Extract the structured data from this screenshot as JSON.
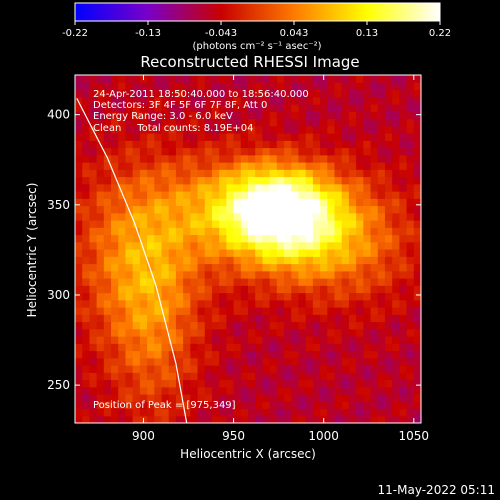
{
  "chart_data": {
    "type": "heatmap",
    "title": "Reconstructed RHESSI Image",
    "xlabel": "Heliocentric X (arcsec)",
    "ylabel": "Heliocentric Y (arcsec)",
    "xlim": [
      862,
      1054
    ],
    "ylim": [
      229,
      422
    ],
    "xticks": [
      900,
      950,
      1000,
      1050
    ],
    "yticks": [
      250,
      300,
      350,
      400
    ],
    "annotations": [
      "24-Apr-2011 18:50:40.000 to 18:56:40.000",
      "Detectors: 3F 4F 5F 6F 7F 8F, Att 0",
      "Energy Range: 3.0 - 6.0 keV",
      "Clean     Total counts: 8.19E+04"
    ],
    "peak_label": "Position of Peak = [975,349]",
    "peak": [
      975,
      349
    ],
    "colorbar": {
      "min": -0.22,
      "max": 0.22,
      "ticks": [
        "-0.22",
        "-0.13",
        "-0.043",
        "0.043",
        "0.13",
        "0.22"
      ],
      "unit_label": "(photons cm⁻² s⁻¹ asec⁻²)",
      "colors": [
        "#0000ff",
        "#7a00c8",
        "#c80000",
        "#ff7a00",
        "#ffff00",
        "#ffffff"
      ]
    },
    "limb_curve": [
      [
        863,
        409
      ],
      [
        880,
        376
      ],
      [
        895,
        340
      ],
      [
        907,
        305
      ],
      [
        918,
        262
      ],
      [
        924,
        229
      ]
    ],
    "sources": [
      {
        "x": 975,
        "y": 349,
        "amp": 0.22,
        "sx": 22,
        "sy": 16
      },
      {
        "x": 985,
        "y": 333,
        "amp": 0.12,
        "sx": 28,
        "sy": 20
      },
      {
        "x": 945,
        "y": 350,
        "amp": 0.08,
        "sx": 30,
        "sy": 20
      },
      {
        "x": 1020,
        "y": 330,
        "amp": 0.06,
        "sx": 25,
        "sy": 25
      },
      {
        "x": 895,
        "y": 325,
        "amp": 0.09,
        "sx": 25,
        "sy": 35
      },
      {
        "x": 905,
        "y": 285,
        "amp": 0.08,
        "sx": 18,
        "sy": 40
      }
    ]
  },
  "footer": {
    "timestamp": "11-May-2022 05:11"
  }
}
